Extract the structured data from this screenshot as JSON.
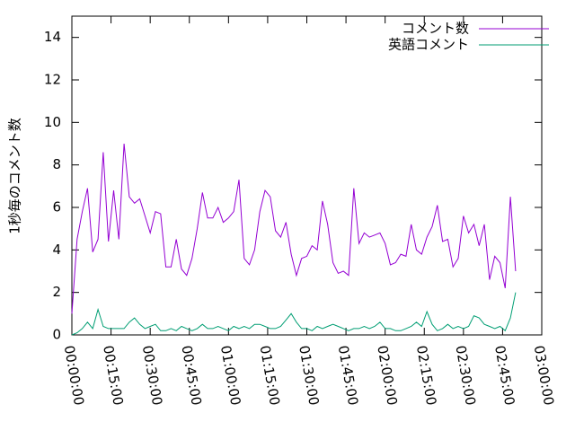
{
  "chart_data": {
    "type": "line",
    "y_label": "1秒毎のコメント数",
    "x": [
      0,
      120,
      240,
      360,
      480,
      600,
      720,
      840,
      960,
      1080,
      1200,
      1320,
      1440,
      1560,
      1680,
      1800,
      1920,
      2040,
      2160,
      2280,
      2400,
      2520,
      2640,
      2760,
      2880,
      3000,
      3120,
      3240,
      3360,
      3480,
      3600,
      3720,
      3840,
      3960,
      4080,
      4200,
      4320,
      4440,
      4560,
      4680,
      4800,
      4920,
      5040,
      5160,
      5280,
      5400,
      5520,
      5640,
      5760,
      5880,
      6000,
      6120,
      6240,
      6360,
      6480,
      6600,
      6720,
      6840,
      6960,
      7080,
      7200,
      7320,
      7440,
      7560,
      7680,
      7800,
      7920,
      8040,
      8160,
      8280,
      8400,
      8520,
      8640,
      8760,
      8880,
      9000,
      9120,
      9240,
      9360,
      9480,
      9600,
      9720,
      9840,
      9960,
      10080,
      10200
    ],
    "series": [
      {
        "name": "コメント数",
        "color": "#9400d3",
        "values": [
          1.0,
          4.5,
          5.8,
          6.9,
          3.9,
          4.5,
          8.6,
          4.4,
          6.8,
          4.5,
          9.0,
          6.5,
          6.2,
          6.4,
          5.6,
          4.8,
          5.8,
          5.7,
          3.2,
          3.2,
          4.5,
          3.1,
          2.8,
          3.6,
          5.0,
          6.7,
          5.5,
          5.5,
          6.0,
          5.3,
          5.5,
          5.8,
          7.3,
          3.6,
          3.3,
          4.0,
          5.8,
          6.8,
          6.5,
          4.9,
          4.6,
          5.3,
          3.8,
          2.8,
          3.6,
          3.7,
          4.2,
          4.0,
          6.3,
          5.2,
          3.4,
          2.9,
          3.0,
          2.8,
          6.9,
          4.3,
          4.8,
          4.6,
          4.7,
          4.8,
          4.3,
          3.3,
          3.4,
          3.8,
          3.7,
          5.2,
          4.0,
          3.8,
          4.6,
          5.1,
          6.1,
          4.4,
          4.5,
          3.2,
          3.6,
          5.6,
          4.8,
          5.2,
          4.2,
          5.2,
          2.6,
          3.7,
          3.4,
          2.2,
          6.5,
          3.0
        ]
      },
      {
        "name": "英語コメント",
        "color": "#009e73",
        "values": [
          0.0,
          0.1,
          0.3,
          0.6,
          0.3,
          1.2,
          0.4,
          0.3,
          0.3,
          0.3,
          0.3,
          0.6,
          0.8,
          0.5,
          0.3,
          0.4,
          0.5,
          0.2,
          0.2,
          0.3,
          0.2,
          0.4,
          0.3,
          0.2,
          0.3,
          0.5,
          0.3,
          0.3,
          0.4,
          0.3,
          0.2,
          0.4,
          0.3,
          0.4,
          0.3,
          0.5,
          0.5,
          0.4,
          0.3,
          0.3,
          0.4,
          0.7,
          1.0,
          0.6,
          0.3,
          0.3,
          0.2,
          0.4,
          0.3,
          0.4,
          0.5,
          0.4,
          0.3,
          0.2,
          0.3,
          0.3,
          0.4,
          0.3,
          0.4,
          0.6,
          0.3,
          0.3,
          0.2,
          0.2,
          0.3,
          0.4,
          0.6,
          0.4,
          1.1,
          0.5,
          0.2,
          0.3,
          0.5,
          0.3,
          0.4,
          0.3,
          0.4,
          0.9,
          0.8,
          0.5,
          0.4,
          0.3,
          0.4,
          0.2,
          0.8,
          2.0
        ]
      }
    ],
    "xlim": [
      0,
      10800
    ],
    "xticks": [
      {
        "value": 0,
        "label": "00:00:00"
      },
      {
        "value": 900,
        "label": "00:15:00"
      },
      {
        "value": 1800,
        "label": "00:30:00"
      },
      {
        "value": 2700,
        "label": "00:45:00"
      },
      {
        "value": 3600,
        "label": "01:00:00"
      },
      {
        "value": 4500,
        "label": "01:15:00"
      },
      {
        "value": 5400,
        "label": "01:30:00"
      },
      {
        "value": 6300,
        "label": "01:45:00"
      },
      {
        "value": 7200,
        "label": "02:00:00"
      },
      {
        "value": 8100,
        "label": "02:15:00"
      },
      {
        "value": 9000,
        "label": "02:30:00"
      },
      {
        "value": 9900,
        "label": "02:45:00"
      },
      {
        "value": 10800,
        "label": "03:00:00"
      }
    ],
    "ylim": [
      0,
      15
    ],
    "yticks": [
      0,
      2,
      4,
      6,
      8,
      10,
      12,
      14
    ],
    "legend": "top-right"
  }
}
